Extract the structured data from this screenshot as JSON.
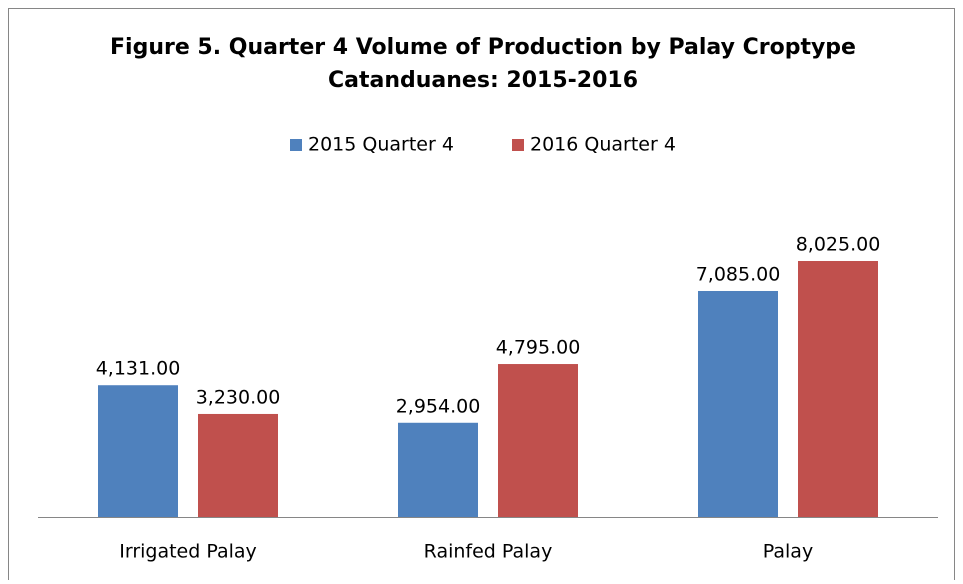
{
  "chart_data": {
    "type": "bar",
    "title": "Figure 5. Quarter 4 Volume of Production by Palay Croptype",
    "subtitle": "Catanduanes: 2015-2016",
    "categories": [
      "Irrigated Palay",
      "Rainfed Palay",
      "Palay"
    ],
    "series": [
      {
        "name": "2015 Quarter 4",
        "color": "#4f81bd",
        "values": [
          4131,
          2954,
          7085
        ],
        "value_labels": [
          "4,131.00",
          "2,954.00",
          "7,085.00"
        ]
      },
      {
        "name": "2016 Quarter 4",
        "color": "#c0504d",
        "values": [
          3230,
          4795,
          8025
        ],
        "value_labels": [
          "3,230.00",
          "4,795.00",
          "8,025.00"
        ]
      }
    ],
    "legend": "top"
  }
}
